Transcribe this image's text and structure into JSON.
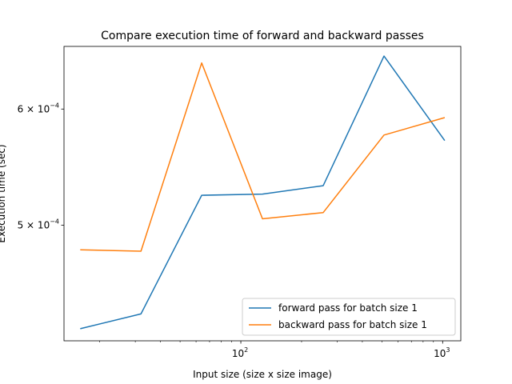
{
  "chart_data": {
    "type": "line",
    "title": "Compare execution time of forward and backward passes",
    "xlabel": "Input size (size x size image)",
    "ylabel": "Execution time (sec)",
    "xscale": "log",
    "yscale": "log",
    "xlim": [
      13.3,
      1230
    ],
    "ylim": [
      0.000417,
      0.000662
    ],
    "x": [
      16,
      32,
      64,
      128,
      256,
      512,
      1024
    ],
    "xticks": [
      {
        "value": 100,
        "label": "10",
        "exp": "2"
      },
      {
        "value": 1000,
        "label": "10",
        "exp": "3"
      }
    ],
    "yticks": [
      {
        "value": 0.0005,
        "label": "5 × 10",
        "exp": "−4"
      },
      {
        "value": 0.0006,
        "label": "6 × 10",
        "exp": "−4"
      }
    ],
    "grid": false,
    "legend_position": "lower-right",
    "series": [
      {
        "name": "forward pass for batch size 1",
        "color": "#1f77b4",
        "values": [
          0.000425,
          0.000435,
          0.000524,
          0.000525,
          0.000532,
          0.000652,
          0.000571
        ]
      },
      {
        "name": "backward pass for batch size 1",
        "color": "#ff7f0e",
        "values": [
          0.000481,
          0.00048,
          0.000645,
          0.000505,
          0.00051,
          0.000576,
          0.000592
        ]
      }
    ]
  }
}
